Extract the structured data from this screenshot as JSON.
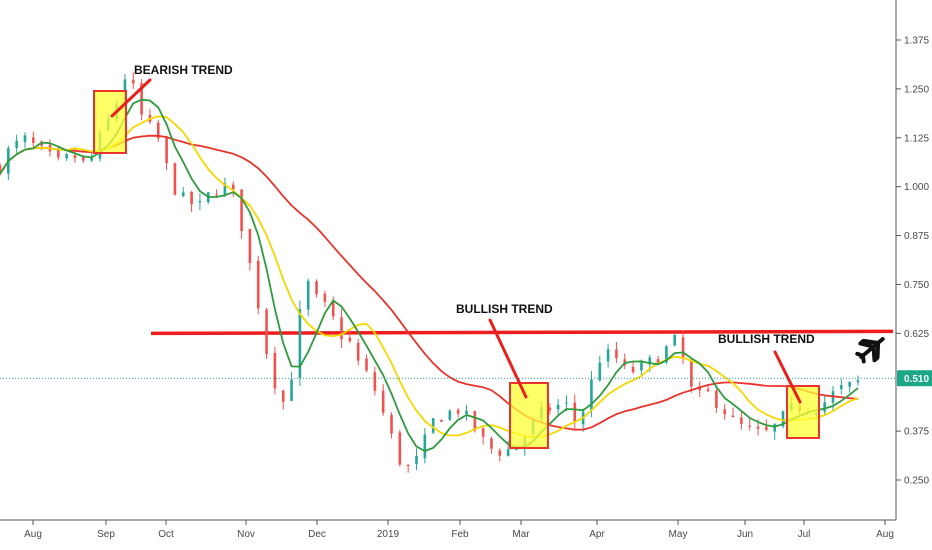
{
  "chart_data": {
    "type": "candlestick",
    "y_ticks": [
      1.375,
      1.25,
      1.125,
      1.0,
      0.875,
      0.75,
      0.625,
      0.51,
      0.375,
      0.25
    ],
    "y_tick_labels": [
      "1.375",
      "1.250",
      "1.125",
      "1.000",
      "0.875",
      "0.750",
      "0.625",
      "0.510",
      "0.375",
      "0.250"
    ],
    "ylim": [
      0.2,
      1.44
    ],
    "x_ticks": [
      "Aug",
      "Sep",
      "Oct",
      "Nov",
      "Dec",
      "2019",
      "Feb",
      "Mar",
      "Apr",
      "May",
      "Jun",
      "Jul",
      "Aug"
    ],
    "last_price": 0.51,
    "last_price_label": "0.510",
    "resistance_level": 0.63,
    "annotations": [
      {
        "id": "bearish",
        "text": "BEARISH TREND"
      },
      {
        "id": "bullish1",
        "text": "BULLISH TREND"
      },
      {
        "id": "bullish2",
        "text": "BULLISH TREND"
      }
    ],
    "close_path": [
      [
        0,
        1.05
      ],
      [
        5,
        1.1
      ],
      [
        12,
        1.12
      ],
      [
        20,
        1.09
      ],
      [
        28,
        1.06
      ],
      [
        35,
        1.08
      ],
      [
        42,
        1.05
      ],
      [
        50,
        1.15
      ],
      [
        55,
        1.2
      ],
      [
        60,
        1.28
      ],
      [
        64,
        1.25
      ],
      [
        68,
        1.18
      ],
      [
        72,
        1.15
      ],
      [
        76,
        1.12
      ],
      [
        80,
        1.05
      ],
      [
        85,
        0.98
      ],
      [
        90,
        0.96
      ],
      [
        96,
        0.95
      ],
      [
        102,
        0.99
      ],
      [
        108,
        1.0
      ],
      [
        112,
        0.98
      ],
      [
        116,
        0.9
      ],
      [
        120,
        0.8
      ],
      [
        124,
        0.7
      ],
      [
        128,
        0.58
      ],
      [
        133,
        0.48
      ],
      [
        136,
        0.45
      ],
      [
        140,
        0.52
      ],
      [
        143,
        0.62
      ],
      [
        146,
        0.78
      ],
      [
        150,
        0.72
      ],
      [
        155,
        0.7
      ],
      [
        160,
        0.66
      ],
      [
        164,
        0.62
      ],
      [
        168,
        0.6
      ],
      [
        172,
        0.55
      ],
      [
        176,
        0.52
      ],
      [
        180,
        0.48
      ],
      [
        184,
        0.42
      ],
      [
        188,
        0.36
      ],
      [
        192,
        0.3
      ],
      [
        196,
        0.28
      ],
      [
        200,
        0.3
      ],
      [
        204,
        0.35
      ],
      [
        208,
        0.4
      ],
      [
        214,
        0.42
      ],
      [
        220,
        0.43
      ],
      [
        226,
        0.4
      ],
      [
        230,
        0.36
      ],
      [
        236,
        0.33
      ],
      [
        242,
        0.32
      ],
      [
        248,
        0.34
      ],
      [
        254,
        0.38
      ],
      [
        260,
        0.42
      ],
      [
        266,
        0.44
      ],
      [
        272,
        0.44
      ],
      [
        276,
        0.4
      ],
      [
        280,
        0.43
      ],
      [
        284,
        0.5
      ],
      [
        288,
        0.56
      ],
      [
        292,
        0.57
      ],
      [
        296,
        0.56
      ],
      [
        300,
        0.53
      ],
      [
        306,
        0.53
      ],
      [
        312,
        0.55
      ],
      [
        318,
        0.57
      ],
      [
        322,
        0.6
      ],
      [
        326,
        0.61
      ],
      [
        330,
        0.5
      ],
      [
        334,
        0.46
      ],
      [
        340,
        0.47
      ],
      [
        346,
        0.44
      ],
      [
        352,
        0.4
      ],
      [
        358,
        0.38
      ],
      [
        364,
        0.37
      ],
      [
        370,
        0.37
      ],
      [
        374,
        0.4
      ],
      [
        380,
        0.43
      ],
      [
        386,
        0.44
      ],
      [
        390,
        0.43
      ],
      [
        396,
        0.45
      ],
      [
        402,
        0.48
      ],
      [
        408,
        0.49
      ],
      [
        412,
        0.5
      ]
    ],
    "x_range": [
      0,
      414
    ],
    "ma_fast_period": 5,
    "ma_mid_period": 9,
    "ma_slow_period": 24,
    "colors": {
      "up": "#26a69a",
      "down": "#ef5350",
      "ma_fast": "#2e9b3e",
      "ma_mid": "#f5d800",
      "ma_slow": "#e8342c",
      "resistance": "#ee1c1c",
      "box_fill": "#ffff33",
      "box_stroke": "#e8342c",
      "arrow": "#e8201c",
      "price_tag": "#1aa687",
      "price_line": "#1aa687"
    },
    "icons": {
      "breakout": "airplane-icon"
    }
  }
}
